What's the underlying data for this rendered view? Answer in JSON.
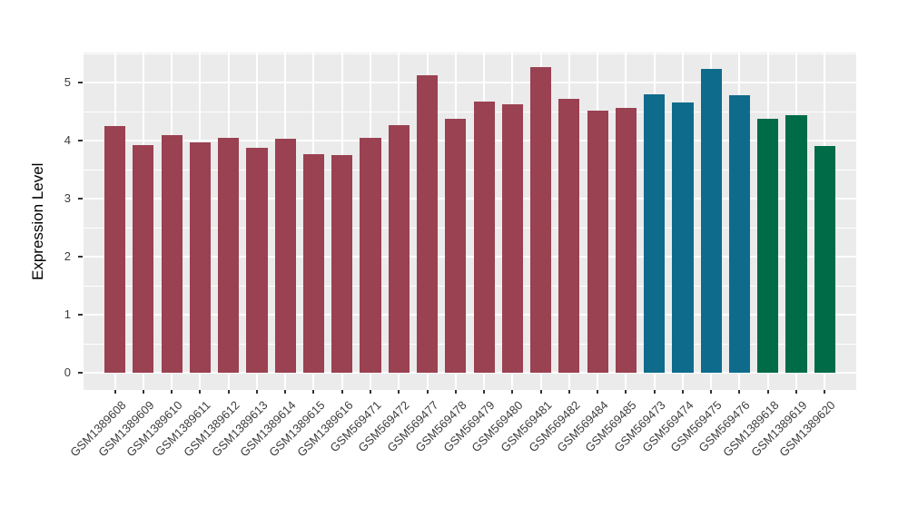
{
  "chart_data": {
    "type": "bar",
    "title": "",
    "xlabel": "",
    "ylabel": "Expression Level",
    "ylim": [
      0,
      5.5
    ],
    "yticks": [
      0,
      1,
      2,
      3,
      4,
      5
    ],
    "grid": "on",
    "legend": "none",
    "x_tick_rotation": 45,
    "categories": [
      "GSM1389608",
      "GSM1389609",
      "GSM1389610",
      "GSM1389611",
      "GSM1389612",
      "GSM1389613",
      "GSM1389614",
      "GSM1389615",
      "GSM1389616",
      "GSM569471",
      "GSM569472",
      "GSM569477",
      "GSM569478",
      "GSM569479",
      "GSM569480",
      "GSM569481",
      "GSM569482",
      "GSM569484",
      "GSM569485",
      "GSM569473",
      "GSM569474",
      "GSM569475",
      "GSM569476",
      "GSM1389618",
      "GSM1389619",
      "GSM1389620"
    ],
    "values": [
      4.25,
      3.92,
      4.09,
      3.97,
      4.04,
      3.88,
      4.03,
      3.77,
      3.75,
      4.04,
      4.26,
      5.12,
      4.38,
      4.67,
      4.62,
      5.26,
      4.72,
      4.52,
      4.56,
      4.79,
      4.66,
      5.23,
      4.78,
      4.38,
      4.43,
      3.91
    ],
    "bar_colors": [
      "#9A4152",
      "#9A4152",
      "#9A4152",
      "#9A4152",
      "#9A4152",
      "#9A4152",
      "#9A4152",
      "#9A4152",
      "#9A4152",
      "#9A4152",
      "#9A4152",
      "#9A4152",
      "#9A4152",
      "#9A4152",
      "#9A4152",
      "#9A4152",
      "#9A4152",
      "#9A4152",
      "#9A4152",
      "#0E6B8B",
      "#0E6B8B",
      "#0E6B8B",
      "#0E6B8B",
      "#006B47",
      "#006B47",
      "#006B47"
    ],
    "palette": {
      "maroon": "#9A4152",
      "teal": "#0E6B8B",
      "green": "#006B47"
    }
  },
  "style": {
    "page_background": "#FFFFFF",
    "panel_background": "#EBEBEB",
    "grid_color": "#FFFFFF",
    "tick_mark_color": "#333333",
    "axis_text_color": "#3C3C3C",
    "axis_title_color": "#000000"
  }
}
